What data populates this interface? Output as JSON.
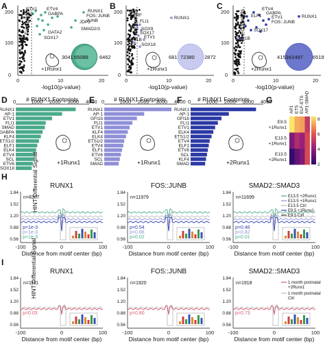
{
  "colors": {
    "green": "#4aaa8b",
    "lavender": "#8f90d8",
    "navy": "#2c3aa6",
    "red": "#d45a6e",
    "gray": "#aaaaaa"
  },
  "panels": {
    "A": "A",
    "B": "B",
    "C": "C",
    "D": "D",
    "E": "E",
    "F": "F",
    "G": "G",
    "H": "H",
    "I": "I"
  },
  "volcano": {
    "ylabel": "# Footprints",
    "xlabel": "-log10(p-value)",
    "xticks": [
      "0",
      "10",
      "20"
    ],
    "yticks": [
      "0",
      "100",
      "200"
    ],
    "A": {
      "labels": [
        "ETV1",
        "ELF1",
        "ETV4",
        "GABPA",
        "JDP2",
        "RUNX1",
        "FOS::JUNB",
        "JUNB",
        "SMAD2/3",
        "GATA2",
        "SOX17"
      ],
      "venn": [
        "3041",
        "65088",
        "6462"
      ],
      "condition": "+1Runx1"
    },
    "B": {
      "labels": [
        "ERF",
        "RUNX1",
        "FLI1",
        "SOX9",
        "SOX17",
        "ETV1",
        "GFI1B",
        "SOX18"
      ],
      "venn": [
        "681",
        "72380",
        "2872"
      ],
      "condition": "+1Runx1"
    },
    "C": {
      "labels": [
        "ETV4",
        "GABPA",
        "ELF1",
        "ETV1",
        "FOS::JUNB",
        "RUNX1",
        "SOX17",
        "GFI1B"
      ],
      "venn": [
        "4153",
        "61497",
        "6519"
      ],
      "condition": "+2Runx1"
    }
  },
  "bars": {
    "title": "# RUNX1 Footprints",
    "xticks": [
      "0",
      "1000",
      "2000",
      "3000",
      "4000"
    ],
    "D": {
      "condition": "+1Runx1",
      "labels": [
        "RUNX1",
        "AP-1",
        "ETV1",
        "FLI1",
        "SMAD",
        "GABPA",
        "KLF4",
        "ETS1/2",
        "ELF1",
        "ELK4",
        "ETV4",
        "SCL",
        "ETV6",
        "SOX18"
      ],
      "values": [
        3300,
        2550,
        2000,
        1650,
        1600,
        1480,
        1380,
        1280,
        1180,
        1120,
        1060,
        1000,
        940,
        880
      ]
    },
    "E": {
      "condition": "+1Runx1",
      "labels": [
        "RUNX1",
        "AP-1",
        "GFI1b",
        "FLI1",
        "ETV1",
        "KLF4",
        "ELK4",
        "ETS1/2",
        "ETV4",
        "ELF1",
        "ETV6",
        "SCL",
        "SMAD"
      ],
      "values": [
        3700,
        2200,
        1800,
        1550,
        1400,
        1300,
        1200,
        1100,
        1050,
        980,
        920,
        860,
        800
      ]
    },
    "F": {
      "condition": "+2Runx1",
      "labels": [
        "RUNX1",
        "AP-1",
        "GFI1b",
        "FLI1",
        "ETV1",
        "ELK4",
        "ETS1/2",
        "ETV4",
        "ELF1",
        "ETV6",
        "SCL",
        "KLF4",
        "SMAD"
      ],
      "values": [
        3600,
        2100,
        1700,
        1500,
        1350,
        1250,
        1150,
        1050,
        1000,
        950,
        900,
        850,
        800
      ]
    }
  },
  "chart_data": {
    "type": "heatmap",
    "columns": [
      "AP1",
      "ETS",
      "ELF-ETS",
      "AP1-SMAD"
    ],
    "rows": [
      "E9.5 +1Runx1",
      "E13.5 +1Runx1",
      "E13.5 +2Runx1"
    ],
    "values": [
      [
        8,
        7.2,
        7,
        5
      ],
      [
        3.5,
        4.5,
        4,
        5.5
      ],
      [
        2.2,
        3,
        3.5,
        5.5
      ]
    ],
    "colorbar": [
      "2",
      "4",
      "6",
      "8"
    ]
  },
  "profiles": {
    "ylabel": "HINT Differential Signal",
    "xlabel": "Distance from motif center (bp)",
    "xticks": [
      "-100",
      "0",
      "100"
    ],
    "H": [
      {
        "title": "RUNX1",
        "n": "n=8307",
        "yticks": [
          "1.84",
          "1.52",
          "1.20",
          "0.88",
          "0.56"
        ],
        "pvals": [
          "p<1e-3",
          "p<1e-3",
          "p<1e-3"
        ]
      },
      {
        "title": "FOS::JUNB",
        "n": "n=11979",
        "yticks": [
          "1.84",
          "1.52",
          "1.20",
          "0.88",
          "0.56"
        ],
        "pvals": [
          "p=0.54",
          "p=0.86",
          "p=0.02"
        ]
      },
      {
        "title": "SMAD2::SMAD3",
        "n": "n=11699",
        "yticks": [
          "1.84",
          "1.52",
          "1.20",
          "0.88",
          "0.56"
        ],
        "pvals": [
          "p=0.46",
          "p=0.82",
          "p=0.01"
        ]
      }
    ],
    "I": [
      {
        "title": "RUNX1",
        "n": "n=1111",
        "yticks": [
          "1.84",
          "1.52",
          "1.20",
          "0.88",
          "0.56"
        ],
        "pval": "p=0.03"
      },
      {
        "title": "FOS::JUNB",
        "n": "n=1920",
        "yticks": [
          "1.84",
          "1.52",
          "1.20",
          "0.88",
          "0.56"
        ],
        "pval": "p=0.80"
      },
      {
        "title": "SMAD2::SMAD3",
        "n": "n=1918",
        "yticks": [
          "1.84",
          "1.52",
          "1.20",
          "0.88",
          "0.56"
        ],
        "pval": "p=0.73"
      }
    ],
    "legendH": [
      "E13.5 +2Runx1",
      "E13.5 +1Runx1",
      "E13.5 Ctrl",
      "E9.5 +1Runx1",
      "E9.5 Ctrl"
    ],
    "legendI": [
      "1 month postnatal +2Runx1",
      "1 month postnatal Ctrl"
    ]
  }
}
